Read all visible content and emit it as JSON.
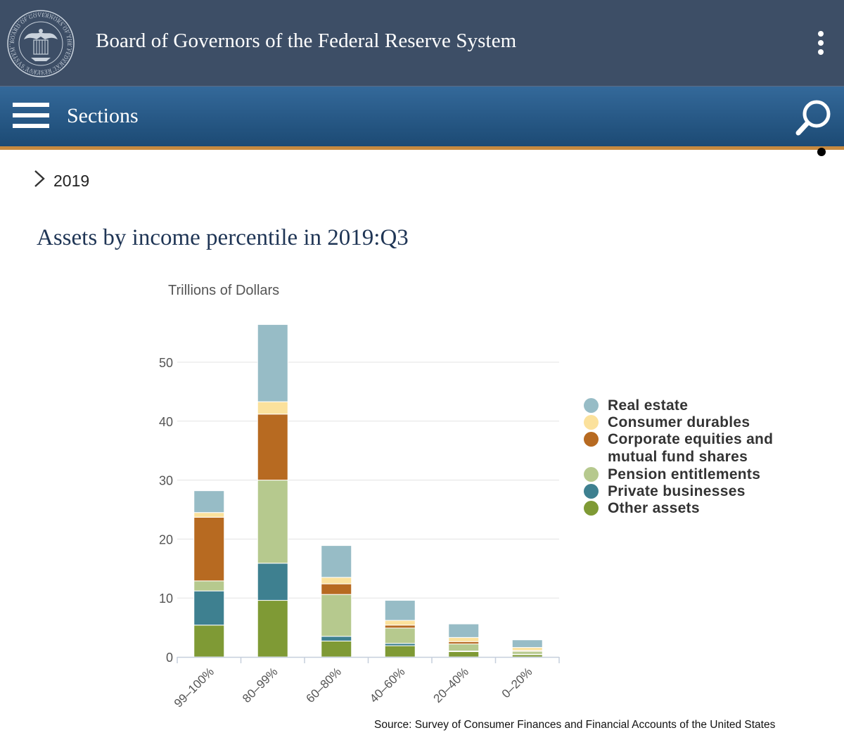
{
  "header": {
    "org_name": "Board of Governors of the Federal Reserve System",
    "seal_text": "BOARD OF GOVERNORS OF THE FEDERAL RESERVE SYSTEM",
    "menu_icon": "kebab-menu-icon"
  },
  "nav": {
    "sections_label": "Sections",
    "menu_icon": "hamburger-icon",
    "search_icon": "search-icon"
  },
  "breadcrumb": {
    "label": "2019",
    "icon": "chevron-right-icon"
  },
  "page": {
    "title": "Assets by income percentile in 2019:Q3",
    "source": "Source: Survey of Consumer Finances and Financial Accounts of the United States"
  },
  "colors": {
    "header_bg": "#3d4e66",
    "nav_bg": "#1f4c77",
    "accent": "#c78a3f",
    "title": "#1f3555"
  },
  "chart_data": {
    "type": "bar",
    "stacked": true,
    "title": "",
    "ylabel": "Trillions of Dollars",
    "xlabel": "",
    "ylim": [
      0,
      56
    ],
    "yticks": [
      0,
      10,
      20,
      30,
      40,
      50
    ],
    "grid": true,
    "legend_position": "right",
    "categories": [
      "99–100%",
      "80–99%",
      "60–80%",
      "40–60%",
      "20–40%",
      "0–20%"
    ],
    "series": [
      {
        "name": "Other assets",
        "color": "#7f9a35",
        "values": [
          5.4,
          9.6,
          2.7,
          1.9,
          0.9,
          0.4
        ]
      },
      {
        "name": "Private businesses",
        "color": "#3e8090",
        "values": [
          5.8,
          6.3,
          0.8,
          0.4,
          0.1,
          0.05
        ]
      },
      {
        "name": "Pension entitlements",
        "color": "#b6c98e",
        "values": [
          1.7,
          14.1,
          7.1,
          2.6,
          1.2,
          0.5
        ]
      },
      {
        "name": "Corporate equities and mutual fund shares",
        "color": "#b76a21",
        "values": [
          10.8,
          11.2,
          1.8,
          0.5,
          0.4,
          0.15
        ]
      },
      {
        "name": "Consumer durables",
        "color": "#fbe19c",
        "values": [
          0.8,
          2.1,
          1.1,
          0.8,
          0.7,
          0.5
        ]
      },
      {
        "name": "Real estate",
        "color": "#97bcc6",
        "values": [
          3.7,
          13.1,
          5.4,
          3.4,
          2.3,
          1.3
        ]
      }
    ]
  }
}
